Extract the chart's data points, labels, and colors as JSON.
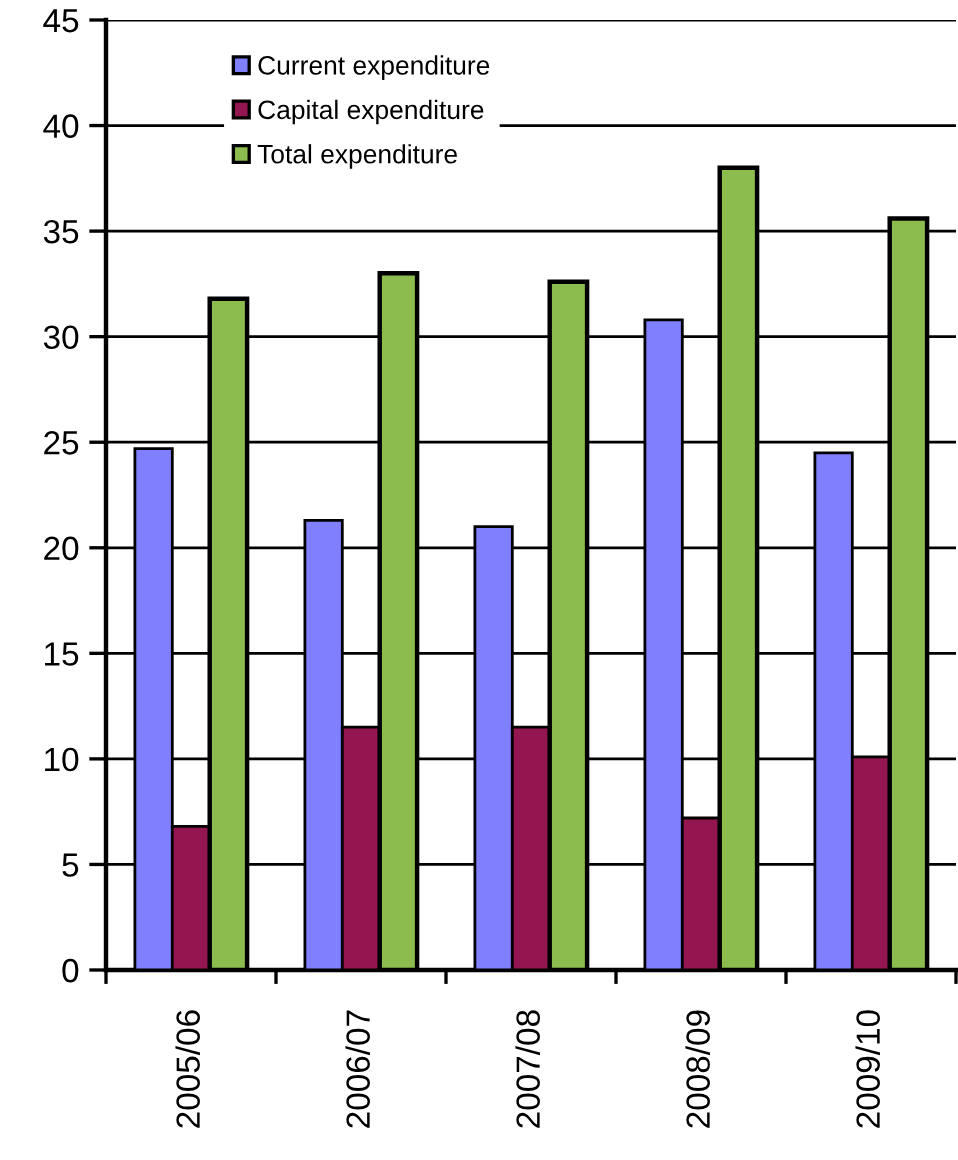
{
  "chart_data": {
    "type": "bar",
    "categories": [
      "2005/06",
      "2006/07",
      "2007/08",
      "2008/09",
      "2009/10"
    ],
    "series": [
      {
        "name": "Current expenditure",
        "color": "#8080ff",
        "values": [
          24.7,
          21.3,
          21.0,
          30.8,
          24.5
        ]
      },
      {
        "name": "Capital expenditure",
        "color": "#941651",
        "values": [
          6.8,
          11.5,
          11.5,
          7.2,
          10.1
        ]
      },
      {
        "name": "Total expenditure",
        "color": "#8cbb4e",
        "values": [
          31.8,
          33.0,
          32.6,
          38.0,
          35.6
        ]
      }
    ],
    "ylim": [
      0,
      45
    ],
    "yticks": [
      0,
      5,
      10,
      15,
      20,
      25,
      30,
      35,
      40,
      45
    ],
    "grid": "y",
    "legend": "top left"
  }
}
